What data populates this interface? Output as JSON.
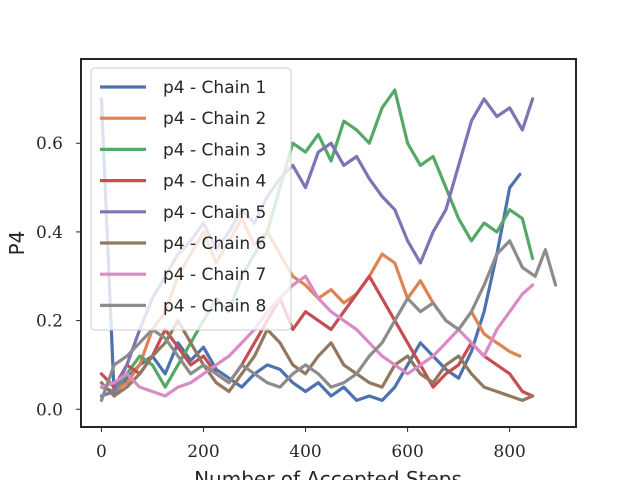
{
  "chart_data": {
    "type": "line",
    "title": "",
    "xlabel": "Number of Accepted Steps",
    "ylabel": "P4",
    "xlim": [
      -40,
      930
    ],
    "ylim": [
      -0.04,
      0.79
    ],
    "xticks": [
      0,
      200,
      400,
      600,
      800
    ],
    "yticks": [
      0.0,
      0.2,
      0.4,
      0.6
    ],
    "grid": false,
    "legend_position": "upper-left",
    "series": [
      {
        "name": "p4 - Chain 1",
        "color": "#4c72b0",
        "x": [
          0,
          25,
          50,
          75,
          100,
          125,
          150,
          175,
          200,
          225,
          250,
          275,
          300,
          325,
          350,
          375,
          400,
          425,
          450,
          475,
          500,
          525,
          550,
          575,
          600,
          625,
          650,
          675,
          700,
          725,
          750,
          775,
          800,
          820
        ],
        "y": [
          0.7,
          0.03,
          0.07,
          0.1,
          0.12,
          0.08,
          0.15,
          0.11,
          0.14,
          0.09,
          0.07,
          0.05,
          0.08,
          0.1,
          0.09,
          0.06,
          0.04,
          0.06,
          0.03,
          0.05,
          0.02,
          0.03,
          0.02,
          0.05,
          0.1,
          0.15,
          0.12,
          0.09,
          0.07,
          0.13,
          0.22,
          0.35,
          0.5,
          0.53
        ]
      },
      {
        "name": "p4 - Chain 2",
        "color": "#dd8452",
        "x": [
          0,
          25,
          50,
          75,
          100,
          125,
          150,
          175,
          200,
          225,
          250,
          275,
          300,
          325,
          350,
          375,
          400,
          425,
          450,
          475,
          500,
          525,
          550,
          575,
          600,
          625,
          650,
          675,
          700,
          725,
          750,
          775,
          800,
          820
        ],
        "y": [
          0.05,
          0.04,
          0.06,
          0.1,
          0.18,
          0.22,
          0.3,
          0.35,
          0.4,
          0.33,
          0.38,
          0.43,
          0.37,
          0.4,
          0.35,
          0.3,
          0.28,
          0.25,
          0.27,
          0.24,
          0.26,
          0.3,
          0.35,
          0.33,
          0.25,
          0.29,
          0.24,
          0.2,
          0.18,
          0.22,
          0.17,
          0.15,
          0.13,
          0.12
        ]
      },
      {
        "name": "p4 - Chain 3",
        "color": "#55a868",
        "x": [
          0,
          25,
          50,
          75,
          100,
          125,
          150,
          175,
          200,
          225,
          250,
          275,
          300,
          325,
          350,
          375,
          400,
          425,
          450,
          475,
          500,
          525,
          550,
          575,
          600,
          625,
          650,
          675,
          700,
          725,
          750,
          775,
          800,
          825,
          845
        ],
        "y": [
          0.05,
          0.04,
          0.08,
          0.12,
          0.1,
          0.05,
          0.1,
          0.15,
          0.2,
          0.25,
          0.22,
          0.3,
          0.35,
          0.4,
          0.5,
          0.6,
          0.58,
          0.62,
          0.56,
          0.65,
          0.63,
          0.6,
          0.68,
          0.72,
          0.6,
          0.55,
          0.57,
          0.5,
          0.43,
          0.38,
          0.42,
          0.4,
          0.45,
          0.43,
          0.34
        ]
      },
      {
        "name": "p4 - Chain 4",
        "color": "#c44e52",
        "x": [
          0,
          25,
          50,
          75,
          100,
          125,
          150,
          175,
          200,
          225,
          250,
          275,
          300,
          325,
          350,
          375,
          400,
          425,
          450,
          475,
          500,
          525,
          550,
          575,
          600,
          625,
          650,
          675,
          700,
          725,
          750,
          775,
          800,
          825,
          845
        ],
        "y": [
          0.08,
          0.05,
          0.1,
          0.08,
          0.12,
          0.18,
          0.14,
          0.1,
          0.12,
          0.08,
          0.06,
          0.1,
          0.15,
          0.2,
          0.25,
          0.18,
          0.22,
          0.2,
          0.18,
          0.22,
          0.26,
          0.3,
          0.25,
          0.2,
          0.15,
          0.1,
          0.05,
          0.08,
          0.1,
          0.15,
          0.12,
          0.1,
          0.08,
          0.04,
          0.03
        ]
      },
      {
        "name": "p4 - Chain 5",
        "color": "#8172b3",
        "x": [
          0,
          25,
          50,
          75,
          100,
          125,
          150,
          175,
          200,
          225,
          250,
          275,
          300,
          325,
          350,
          375,
          400,
          425,
          450,
          475,
          500,
          525,
          550,
          575,
          600,
          625,
          650,
          675,
          700,
          725,
          750,
          775,
          800,
          825,
          845
        ],
        "y": [
          0.03,
          0.04,
          0.1,
          0.18,
          0.25,
          0.3,
          0.35,
          0.38,
          0.42,
          0.36,
          0.4,
          0.45,
          0.42,
          0.48,
          0.52,
          0.55,
          0.5,
          0.58,
          0.6,
          0.55,
          0.57,
          0.52,
          0.48,
          0.45,
          0.38,
          0.33,
          0.4,
          0.45,
          0.55,
          0.65,
          0.7,
          0.66,
          0.68,
          0.63,
          0.7
        ]
      },
      {
        "name": "p4 - Chain 6",
        "color": "#937860",
        "x": [
          0,
          25,
          50,
          75,
          100,
          125,
          150,
          175,
          200,
          225,
          250,
          275,
          300,
          325,
          350,
          375,
          400,
          425,
          450,
          475,
          500,
          525,
          550,
          575,
          600,
          625,
          650,
          675,
          700,
          725,
          750,
          775,
          800,
          825,
          845
        ],
        "y": [
          0.06,
          0.03,
          0.05,
          0.08,
          0.12,
          0.15,
          0.2,
          0.15,
          0.1,
          0.06,
          0.04,
          0.08,
          0.12,
          0.18,
          0.15,
          0.1,
          0.08,
          0.12,
          0.15,
          0.1,
          0.08,
          0.06,
          0.05,
          0.1,
          0.12,
          0.08,
          0.06,
          0.1,
          0.12,
          0.08,
          0.05,
          0.04,
          0.03,
          0.02,
          0.03
        ]
      },
      {
        "name": "p4 - Chain 7",
        "color": "#da8bc3",
        "x": [
          0,
          25,
          50,
          75,
          100,
          125,
          150,
          175,
          200,
          225,
          250,
          275,
          300,
          325,
          350,
          375,
          400,
          425,
          450,
          475,
          500,
          525,
          550,
          575,
          600,
          625,
          650,
          675,
          700,
          725,
          750,
          775,
          800,
          825,
          845
        ],
        "y": [
          0.05,
          0.06,
          0.08,
          0.05,
          0.04,
          0.03,
          0.05,
          0.06,
          0.08,
          0.1,
          0.12,
          0.15,
          0.18,
          0.22,
          0.25,
          0.28,
          0.3,
          0.25,
          0.22,
          0.2,
          0.18,
          0.15,
          0.12,
          0.1,
          0.08,
          0.1,
          0.12,
          0.15,
          0.18,
          0.15,
          0.12,
          0.18,
          0.22,
          0.26,
          0.28
        ]
      },
      {
        "name": "p4 - Chain 8",
        "color": "#8c8c8c",
        "x": [
          0,
          25,
          50,
          75,
          100,
          125,
          150,
          175,
          200,
          225,
          250,
          275,
          300,
          325,
          350,
          375,
          400,
          425,
          450,
          475,
          500,
          525,
          550,
          575,
          600,
          625,
          650,
          675,
          700,
          725,
          750,
          775,
          800,
          825,
          850,
          870,
          890
        ],
        "y": [
          0.02,
          0.1,
          0.12,
          0.15,
          0.18,
          0.16,
          0.12,
          0.08,
          0.1,
          0.08,
          0.06,
          0.1,
          0.08,
          0.06,
          0.05,
          0.08,
          0.1,
          0.08,
          0.05,
          0.06,
          0.08,
          0.12,
          0.15,
          0.2,
          0.25,
          0.22,
          0.24,
          0.2,
          0.18,
          0.22,
          0.28,
          0.35,
          0.38,
          0.32,
          0.3,
          0.36,
          0.28
        ]
      }
    ]
  }
}
